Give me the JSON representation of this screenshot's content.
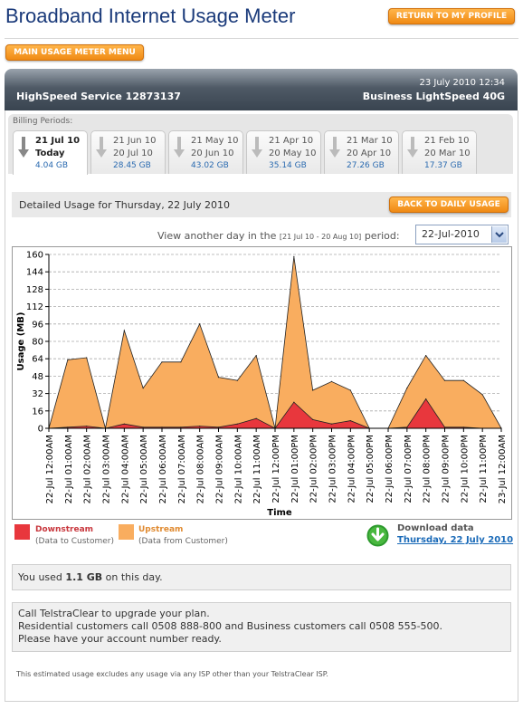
{
  "header": {
    "title": "Broadband Internet Usage Meter",
    "return_button": "RETURN TO MY PROFILE",
    "main_menu_button": "MAIN USAGE METER MENU"
  },
  "account": {
    "datetime": "23 July 2010 12:34",
    "service": "HighSpeed Service 12873137",
    "plan": "Business LightSpeed 40G"
  },
  "billing": {
    "label": "Billing Periods:",
    "tabs": [
      {
        "line1": "21 Jul 10",
        "line2": "Today",
        "usage": "4.04 GB"
      },
      {
        "line1": "21 Jun 10",
        "line2": "20 Jul 10",
        "usage": "28.45 GB"
      },
      {
        "line1": "21 May 10",
        "line2": "20 Jun 10",
        "usage": "43.02 GB"
      },
      {
        "line1": "21 Apr 10",
        "line2": "20 May 10",
        "usage": "35.14 GB"
      },
      {
        "line1": "21 Mar 10",
        "line2": "20 Apr 10",
        "usage": "27.26 GB"
      },
      {
        "line1": "21 Feb 10",
        "line2": "20 Mar 10",
        "usage": "17.37 GB"
      }
    ]
  },
  "detail": {
    "title": "Detailed Usage for Thursday, 22 July 2010",
    "back_button": "BACK TO DAILY USAGE",
    "view_prefix": "View another day in the",
    "view_range": "[21 Jul 10 - 20 Aug 10]",
    "view_suffix": "period:",
    "selected_date": "22-Jul-2010"
  },
  "chart_data": {
    "type": "area",
    "xlabel": "Time",
    "ylabel": "Usage (MB)",
    "ylim": [
      0,
      160
    ],
    "yticks": [
      0,
      16,
      32,
      48,
      64,
      80,
      96,
      112,
      128,
      144,
      160
    ],
    "grid": true,
    "x": [
      "22-Jul 12:00AM",
      "22-Jul 01:00AM",
      "22-Jul 02:00AM",
      "22-Jul 03:00AM",
      "22-Jul 04:00AM",
      "22-Jul 05:00AM",
      "22-Jul 06:00AM",
      "22-Jul 07:00AM",
      "22-Jul 08:00AM",
      "22-Jul 09:00AM",
      "22-Jul 10:00AM",
      "22-Jul 11:00AM",
      "22-Jul 12:00PM",
      "22-Jul 01:00PM",
      "22-Jul 02:00PM",
      "22-Jul 03:00PM",
      "22-Jul 04:00PM",
      "22-Jul 05:00PM",
      "22-Jul 06:00PM",
      "22-Jul 07:00PM",
      "22-Jul 08:00PM",
      "22-Jul 09:00PM",
      "22-Jul 10:00PM",
      "22-Jul 11:00PM",
      "23-Jul 12:00AM"
    ],
    "series": [
      {
        "name": "Upstream",
        "color": "#f9ad5f",
        "values": [
          0,
          63,
          65,
          0,
          90,
          37,
          61,
          61,
          96,
          47,
          44,
          67,
          0,
          158,
          35,
          43,
          35,
          0,
          0,
          37,
          67,
          44,
          44,
          31,
          0
        ]
      },
      {
        "name": "Downstream",
        "color": "#e8373d",
        "values": [
          0,
          1,
          2,
          0,
          4,
          1,
          1,
          1,
          2,
          1,
          4,
          9,
          0,
          24,
          8,
          4,
          7,
          0,
          0,
          1,
          27,
          1,
          1,
          0,
          0
        ]
      }
    ]
  },
  "legend": {
    "downstream_title": "Downstream",
    "downstream_sub": "(Data to Customer)",
    "downstream_color": "#e8373d",
    "upstream_title": "Upstream",
    "upstream_sub": "(Data from Customer)",
    "upstream_color": "#f9ad5f"
  },
  "download": {
    "label": "Download data",
    "link": "Thursday, 22 July 2010"
  },
  "summary": {
    "prefix": "You used",
    "amount": "1.1 GB",
    "suffix": "on this day."
  },
  "contact": {
    "line1": "Call TelstraClear to upgrade your plan.",
    "line2": "Residential customers call 0508 888-800 and Business customers call 0508 555-500.",
    "line3": "Please have your account number ready."
  },
  "footer": {
    "note": "This estimated usage excludes any usage via any ISP other than your TelstraClear ISP."
  }
}
